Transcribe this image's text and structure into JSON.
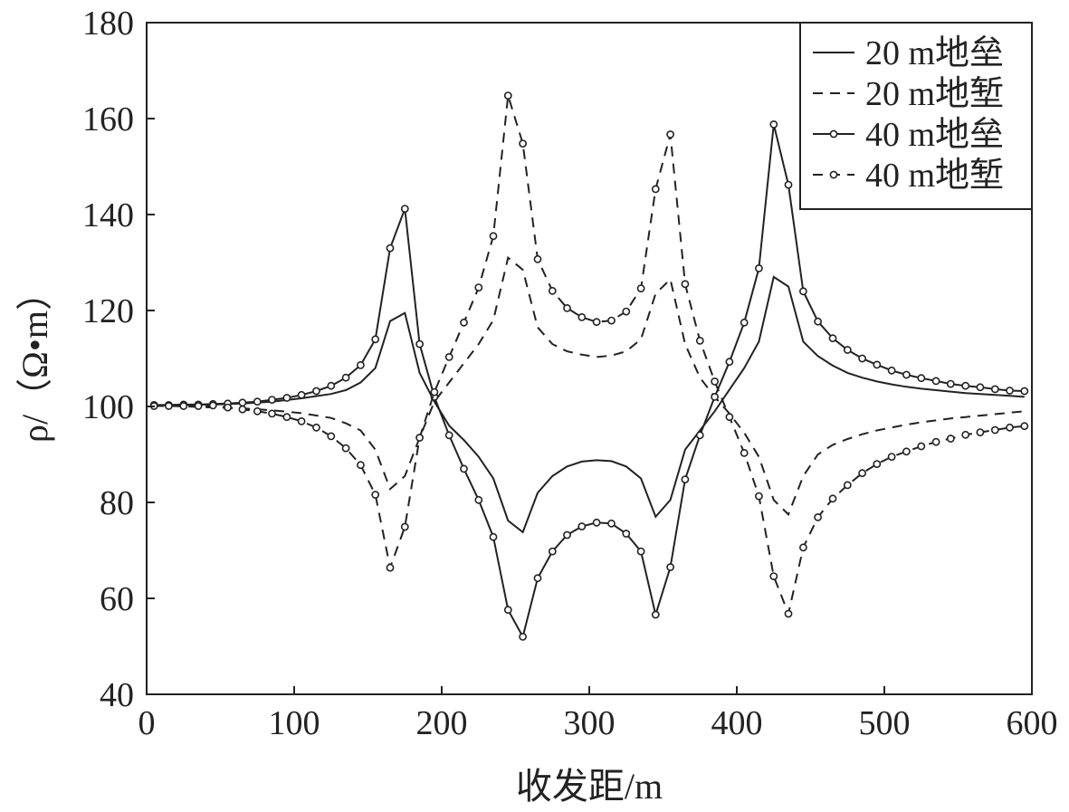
{
  "chart_data": {
    "type": "line",
    "xlabel": "收发距/m",
    "ylabel": "ρ/（Ω•m）",
    "xlim": [
      0,
      600
    ],
    "ylim": [
      40,
      180
    ],
    "xticks": [
      "0",
      "100",
      "200",
      "300",
      "400",
      "500",
      "600"
    ],
    "yticks": [
      "40",
      "60",
      "80",
      "100",
      "120",
      "140",
      "160",
      "180"
    ],
    "grid": false,
    "legend_position": "top-right",
    "series": [
      {
        "name": "20 m地垒",
        "style": "solid",
        "marker": "none",
        "x": [
          5,
          25,
          45,
          65,
          85,
          105,
          125,
          135,
          145,
          155,
          165,
          175,
          185,
          195,
          205,
          215,
          225,
          235,
          245,
          255,
          265,
          275,
          285,
          295,
          305,
          315,
          325,
          335,
          345,
          355,
          365,
          375,
          385,
          395,
          405,
          415,
          425,
          435,
          445,
          455,
          465,
          475,
          485,
          495,
          505,
          515,
          525,
          535,
          545,
          555,
          565,
          575,
          585,
          595
        ],
        "y": [
          100.2,
          100.3,
          100.4,
          100.6,
          101,
          101.7,
          102.6,
          103.4,
          105,
          108,
          117.8,
          119.5,
          107,
          101,
          96,
          93,
          89.5,
          85,
          76.2,
          73.8,
          82,
          85.5,
          87.5,
          88.5,
          88.8,
          88.6,
          87.5,
          85,
          77,
          80.5,
          91,
          95,
          99,
          103.5,
          108,
          113.5,
          127,
          125,
          113.5,
          110.5,
          108.5,
          107,
          106,
          105.2,
          104.6,
          104.1,
          103.7,
          103.4,
          103.1,
          102.8,
          102.6,
          102.4,
          102.2,
          102
        ]
      },
      {
        "name": "20 m地堑",
        "style": "dashed",
        "marker": "none",
        "x": [
          5,
          25,
          45,
          65,
          85,
          105,
          125,
          135,
          145,
          155,
          165,
          175,
          185,
          195,
          205,
          215,
          225,
          235,
          245,
          255,
          265,
          275,
          285,
          295,
          305,
          315,
          325,
          335,
          345,
          355,
          365,
          375,
          385,
          395,
          405,
          415,
          425,
          435,
          445,
          455,
          465,
          475,
          485,
          495,
          505,
          515,
          525,
          535,
          545,
          555,
          565,
          575,
          585,
          595
        ],
        "y": [
          100.2,
          100,
          99.8,
          99.6,
          99.2,
          98.6,
          97.6,
          96.5,
          95,
          91,
          82.8,
          85.5,
          93.5,
          101,
          105,
          109,
          113,
          118,
          131,
          128.5,
          116.5,
          113,
          111.5,
          110.8,
          110.3,
          110.6,
          111.5,
          114,
          123.5,
          126.5,
          113,
          106,
          102,
          98.5,
          94.5,
          89.5,
          80.5,
          77.5,
          85.5,
          90,
          92,
          93.2,
          94.2,
          95,
          95.6,
          96.2,
          96.7,
          97.1,
          97.5,
          97.8,
          98.1,
          98.4,
          98.7,
          99
        ]
      },
      {
        "name": "40 m地垒",
        "style": "solid",
        "marker": "circle",
        "x": [
          5,
          15,
          25,
          35,
          45,
          55,
          65,
          75,
          85,
          95,
          105,
          115,
          125,
          135,
          145,
          155,
          165,
          175,
          185,
          195,
          205,
          215,
          225,
          235,
          245,
          255,
          265,
          275,
          285,
          295,
          305,
          315,
          325,
          335,
          345,
          355,
          365,
          375,
          385,
          395,
          405,
          415,
          425,
          435,
          445,
          455,
          465,
          475,
          485,
          495,
          505,
          515,
          525,
          535,
          545,
          555,
          565,
          575,
          585,
          595
        ],
        "y": [
          100.3,
          100.3,
          100.4,
          100.4,
          100.5,
          100.6,
          100.8,
          101,
          101.4,
          101.8,
          102.4,
          103.2,
          104.3,
          106,
          108.6,
          114,
          133,
          141.2,
          113,
          102,
          94,
          87,
          80.5,
          72.8,
          57.6,
          52,
          64.2,
          69.8,
          73.2,
          75,
          75.8,
          75.6,
          73.5,
          69.8,
          56.6,
          66.5,
          84.8,
          94,
          102,
          109.3,
          117.5,
          128.8,
          158.8,
          146.2,
          124,
          117.7,
          114.2,
          111.8,
          110,
          108.7,
          107.5,
          106.6,
          105.9,
          105.3,
          104.7,
          104.3,
          104,
          103.6,
          103.3,
          103.2
        ]
      },
      {
        "name": "40 m地堑",
        "style": "dashed",
        "marker": "circle",
        "x": [
          5,
          15,
          25,
          35,
          45,
          55,
          65,
          75,
          85,
          95,
          105,
          115,
          125,
          135,
          145,
          155,
          165,
          175,
          185,
          195,
          205,
          215,
          225,
          235,
          245,
          255,
          265,
          275,
          285,
          295,
          305,
          315,
          325,
          335,
          345,
          355,
          365,
          375,
          385,
          395,
          405,
          415,
          425,
          435,
          445,
          455,
          465,
          475,
          485,
          495,
          505,
          515,
          525,
          535,
          545,
          555,
          565,
          575,
          585,
          595
        ],
        "y": [
          100.1,
          100.1,
          100.1,
          100.1,
          100.2,
          99.8,
          99.4,
          99,
          98.5,
          97.8,
          96.9,
          95.6,
          93.8,
          91.3,
          87.8,
          81.6,
          66.4,
          74.9,
          93.5,
          103,
          110.3,
          117.5,
          124.8,
          135.5,
          164.8,
          154.8,
          130.7,
          124.1,
          120.5,
          118.6,
          117.6,
          117.9,
          119.8,
          124.6,
          145.3,
          156.7,
          125.5,
          113.7,
          105.2,
          97.8,
          90.3,
          81.3,
          64.6,
          56.8,
          70.6,
          76.9,
          80.8,
          83.6,
          86.1,
          88,
          89.5,
          90.6,
          91.7,
          92.6,
          93.3,
          94.1,
          94.6,
          95.1,
          95.6,
          95.9
        ]
      }
    ]
  }
}
